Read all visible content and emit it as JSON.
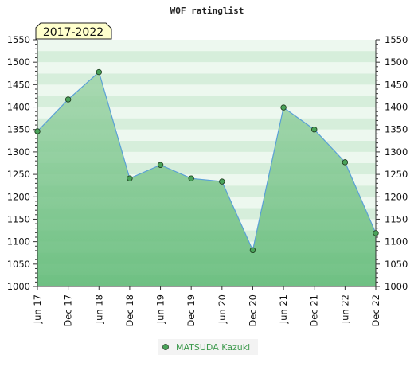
{
  "chart_data": {
    "type": "area",
    "title": "WOF ratinglist",
    "badge": "2017-2022",
    "categories": [
      "Jun 17",
      "Dec 17",
      "Jun 18",
      "Dec 18",
      "Jun 19",
      "Dec 19",
      "Jun 20",
      "Dec 20",
      "Jun 21",
      "Dec 21",
      "Jun 22",
      "Dec 22"
    ],
    "series": [
      {
        "name": "MATSUDA Kazuki",
        "values": [
          1346,
          1417,
          1478,
          1241,
          1271,
          1241,
          1234,
          1081,
          1399,
          1350,
          1277,
          1119
        ]
      }
    ],
    "ylim": [
      1000,
      1550
    ],
    "yticks": [
      "1000",
      "1050",
      "1100",
      "1150",
      "1200",
      "1250",
      "1300",
      "1350",
      "1400",
      "1450",
      "1500",
      "1550"
    ],
    "grid": true,
    "legend": "bottom-center",
    "colors": {
      "line": "#5aa0d6",
      "marker": "#4aa35a",
      "marker_edge": "#1e3a1e",
      "area_top": "#9ed4a8",
      "area_bottom": "#5cb873",
      "band_a": "#d6eedb",
      "band_b": "#edf8ef",
      "badge_bg": "#ffffcc"
    }
  }
}
